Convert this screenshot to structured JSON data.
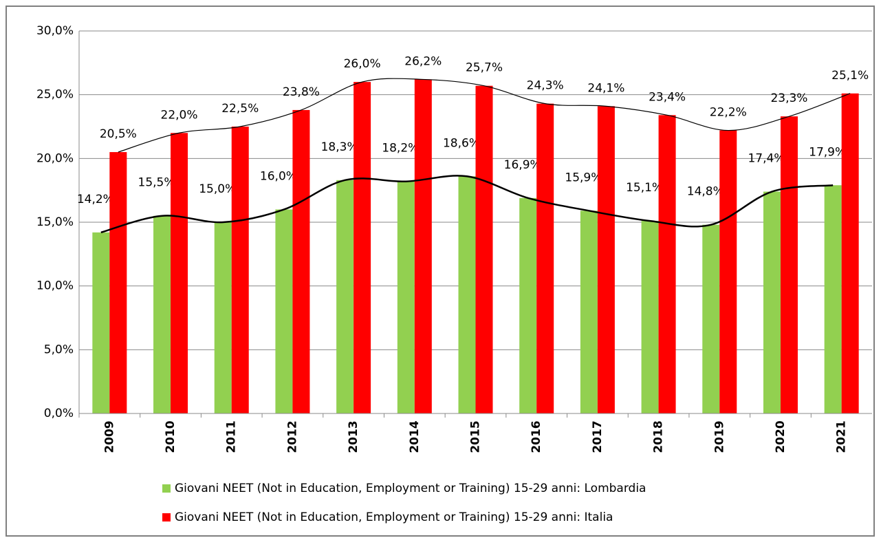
{
  "chart_data": {
    "type": "bar",
    "categories": [
      "2009",
      "2010",
      "2011",
      "2012",
      "2013",
      "2014",
      "2015",
      "2016",
      "2017",
      "2018",
      "2019",
      "2020",
      "2021"
    ],
    "series": [
      {
        "name": "Giovani NEET (Not in Education, Employment or Training) 15-29 anni: Lombardia",
        "color": "#92d050",
        "values": [
          14.2,
          15.5,
          15.0,
          16.0,
          18.3,
          18.2,
          18.6,
          16.9,
          15.9,
          15.1,
          14.8,
          17.4,
          17.9
        ],
        "value_labels": [
          "14,2%",
          "15,5%",
          "15,0%",
          "16,0%",
          "18,3%",
          "18,2%",
          "18,6%",
          "16,9%",
          "15,9%",
          "15,1%",
          "14,8%",
          "17,4%",
          "17,9%"
        ]
      },
      {
        "name": "Giovani NEET (Not in Education, Employment or Training) 15-29 anni: Italia",
        "color": "#ff0000",
        "values": [
          20.5,
          22.0,
          22.5,
          23.8,
          26.0,
          26.2,
          25.7,
          24.3,
          24.1,
          23.4,
          22.2,
          23.3,
          25.1
        ],
        "value_labels": [
          "20,5%",
          "22,0%",
          "22,5%",
          "23,8%",
          "26,0%",
          "26,2%",
          "25,7%",
          "24,3%",
          "24,1%",
          "23,4%",
          "22,2%",
          "23,3%",
          "25,1%"
        ]
      }
    ],
    "ylim": [
      0,
      30
    ],
    "yticks": [
      {
        "value": 0,
        "label": "0,0%"
      },
      {
        "value": 5,
        "label": "5,0%"
      },
      {
        "value": 10,
        "label": "10,0%"
      },
      {
        "value": 15,
        "label": "15,0%"
      },
      {
        "value": 20,
        "label": "20,0%"
      },
      {
        "value": 25,
        "label": "25,0%"
      },
      {
        "value": 30,
        "label": "30,0%"
      }
    ],
    "grid": true,
    "legend": "bottom"
  }
}
